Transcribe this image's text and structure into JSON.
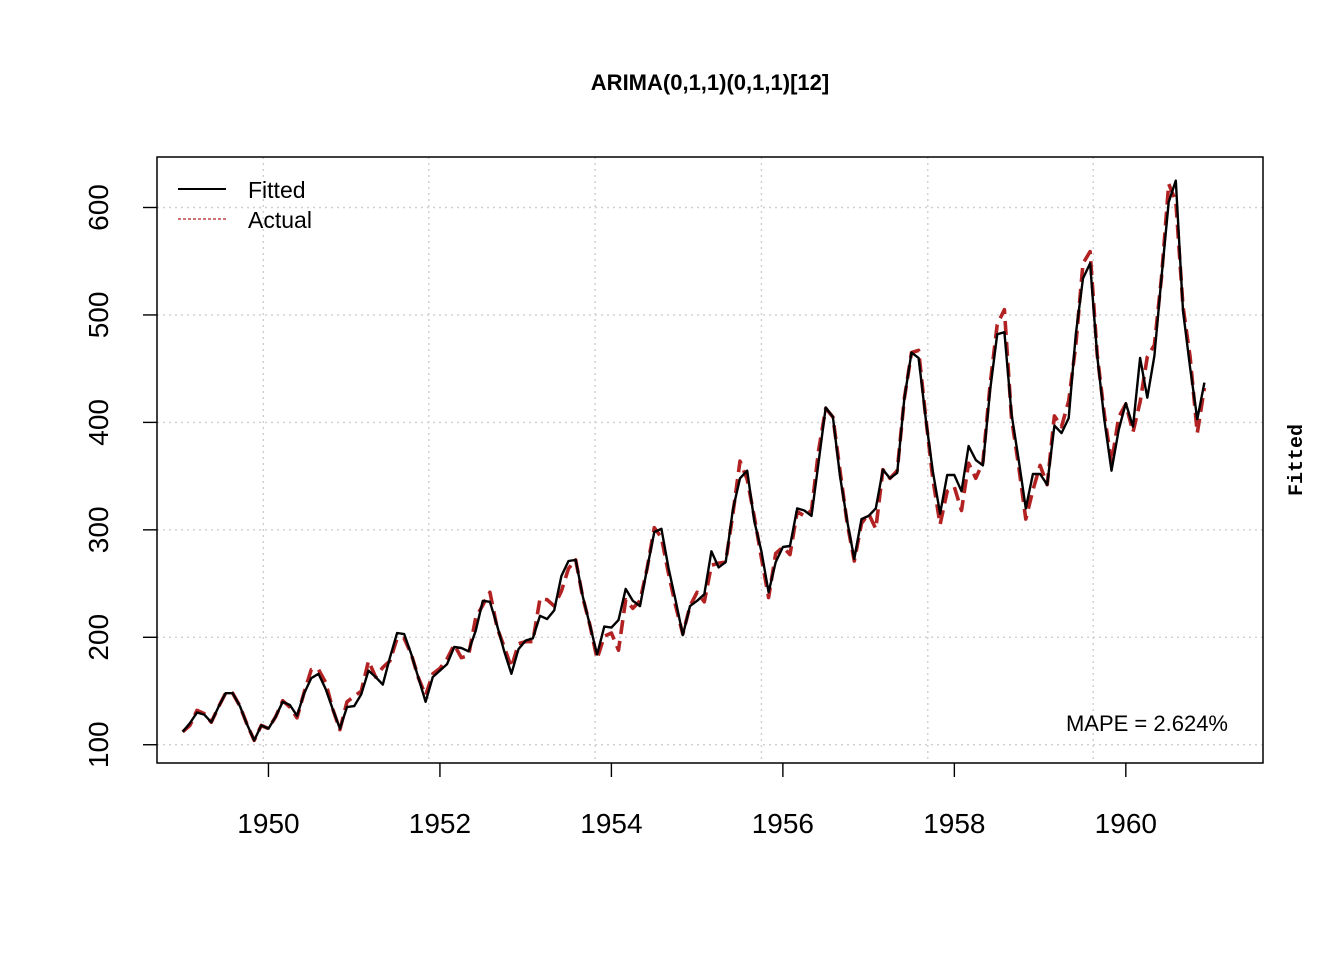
{
  "chart_data": {
    "type": "line",
    "title": "ARIMA(0,1,1)(0,1,1)[12]",
    "xlabel": "",
    "ylabel": "",
    "right_label": "Fitted",
    "annotation": "MAPE = 2.624%",
    "xlim": [
      1948.7,
      1961.6
    ],
    "ylim": [
      83,
      647
    ],
    "x_ticks": [
      1950,
      1952,
      1954,
      1956,
      1958,
      1960
    ],
    "x_tick_labels": [
      "1950",
      "1952",
      "1954",
      "1956",
      "1958",
      "1960"
    ],
    "y_ticks": [
      100,
      200,
      300,
      400,
      500,
      600
    ],
    "y_tick_labels": [
      "100",
      "200",
      "300",
      "400",
      "500",
      "600"
    ],
    "grid": true,
    "legend_position": "top-left",
    "x_start": 1949.0,
    "x_step": 0.0833333,
    "series": [
      {
        "name": "Fitted",
        "color": "#000000",
        "style": "solid",
        "values": [
          112,
          120,
          130,
          128,
          121,
          135,
          148,
          148,
          136,
          119,
          104,
          118,
          115,
          126,
          140,
          137,
          127,
          148,
          162,
          166,
          152,
          133,
          115,
          135,
          136,
          147,
          169,
          163,
          156,
          181,
          204,
          203,
          184,
          162,
          140,
          163,
          169,
          175,
          191,
          190,
          187,
          206,
          234,
          233,
          211,
          187,
          166,
          189,
          197,
          199,
          220,
          217,
          225,
          257,
          271,
          272,
          238,
          211,
          184,
          210,
          209,
          216,
          245,
          234,
          229,
          264,
          298,
          301,
          264,
          234,
          202,
          229,
          234,
          240,
          280,
          265,
          270,
          319,
          348,
          355,
          308,
          280,
          242,
          270,
          284,
          285,
          320,
          318,
          313,
          363,
          414,
          405,
          350,
          308,
          273,
          310,
          313,
          320,
          356,
          348,
          353,
          422,
          465,
          460,
          403,
          354,
          315,
          351,
          351,
          336,
          378,
          365,
          360,
          430,
          482,
          484,
          408,
          365,
          320,
          352,
          352,
          342,
          397,
          390,
          404,
          482,
          534,
          548,
          462,
          402,
          355,
          393,
          418,
          396,
          460,
          423,
          462,
          535,
          605,
          625,
          504,
          451,
          403,
          437
        ]
      },
      {
        "name": "Actual",
        "color": "#b22222",
        "style": "dashed",
        "values": [
          112,
          118,
          132,
          129,
          121,
          135,
          148,
          148,
          136,
          119,
          104,
          118,
          115,
          126,
          141,
          135,
          125,
          149,
          170,
          170,
          158,
          133,
          114,
          140,
          145,
          150,
          178,
          163,
          172,
          178,
          199,
          199,
          184,
          162,
          146,
          166,
          171,
          180,
          193,
          181,
          183,
          218,
          230,
          242,
          209,
          191,
          172,
          194,
          196,
          196,
          236,
          235,
          229,
          243,
          264,
          272,
          237,
          211,
          180,
          201,
          204,
          188,
          235,
          227,
          234,
          264,
          302,
          293,
          259,
          229,
          203,
          229,
          242,
          233,
          267,
          269,
          270,
          315,
          364,
          347,
          312,
          274,
          237,
          278,
          284,
          277,
          317,
          313,
          318,
          374,
          413,
          405,
          355,
          306,
          271,
          306,
          315,
          301,
          356,
          348,
          355,
          422,
          465,
          467,
          404,
          347,
          305,
          336,
          340,
          318,
          362,
          348,
          363,
          435,
          491,
          505,
          404,
          359,
          310,
          337,
          360,
          342,
          406,
          396,
          420,
          472,
          548,
          559,
          463,
          407,
          362,
          405,
          417,
          391,
          419,
          461,
          472,
          535,
          622,
          606,
          508,
          461,
          390,
          432
        ]
      }
    ]
  }
}
